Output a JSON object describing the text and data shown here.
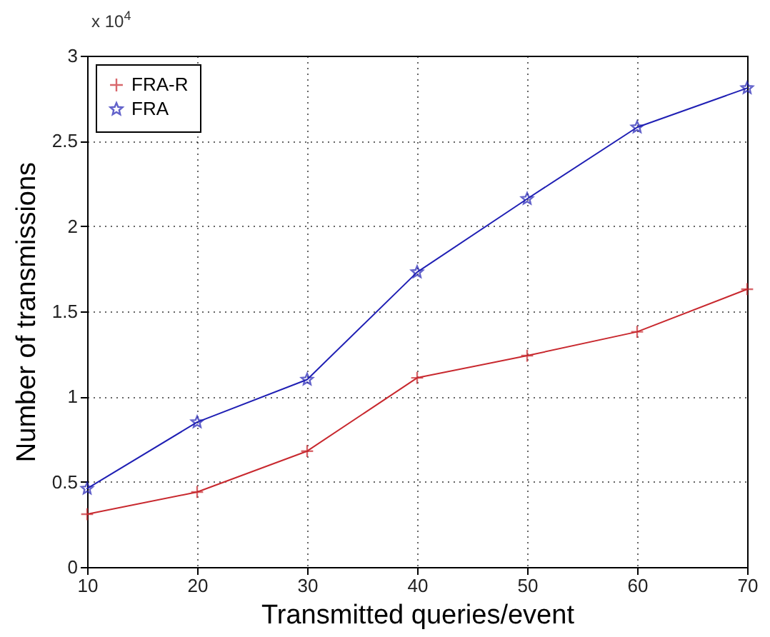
{
  "chart_data": {
    "type": "line",
    "xlabel": "Transmitted queries/event",
    "ylabel": "Number of transmissions",
    "annotations": [
      "x 10$^{4}$"
    ],
    "x": [
      10,
      20,
      30,
      40,
      50,
      60,
      70
    ],
    "series": [
      {
        "name": "FRA-R",
        "color": "#c8282e",
        "marker": "cross",
        "values": [
          0.31,
          0.44,
          0.68,
          1.11,
          1.24,
          1.38,
          1.63
        ]
      },
      {
        "name": "FRA",
        "color": "#1f1fb4",
        "marker": "star",
        "values": [
          0.46,
          0.85,
          1.1,
          1.73,
          2.16,
          2.58,
          2.81
        ]
      }
    ],
    "xlim": [
      10,
      70
    ],
    "xticks": [
      10,
      20,
      30,
      40,
      50,
      60,
      70
    ],
    "ylim": [
      0,
      3
    ],
    "yticks": [
      0,
      0.5,
      1,
      1.5,
      2,
      2.5,
      3
    ],
    "grid": true,
    "legend": "top left",
    "line_style": "solid"
  }
}
